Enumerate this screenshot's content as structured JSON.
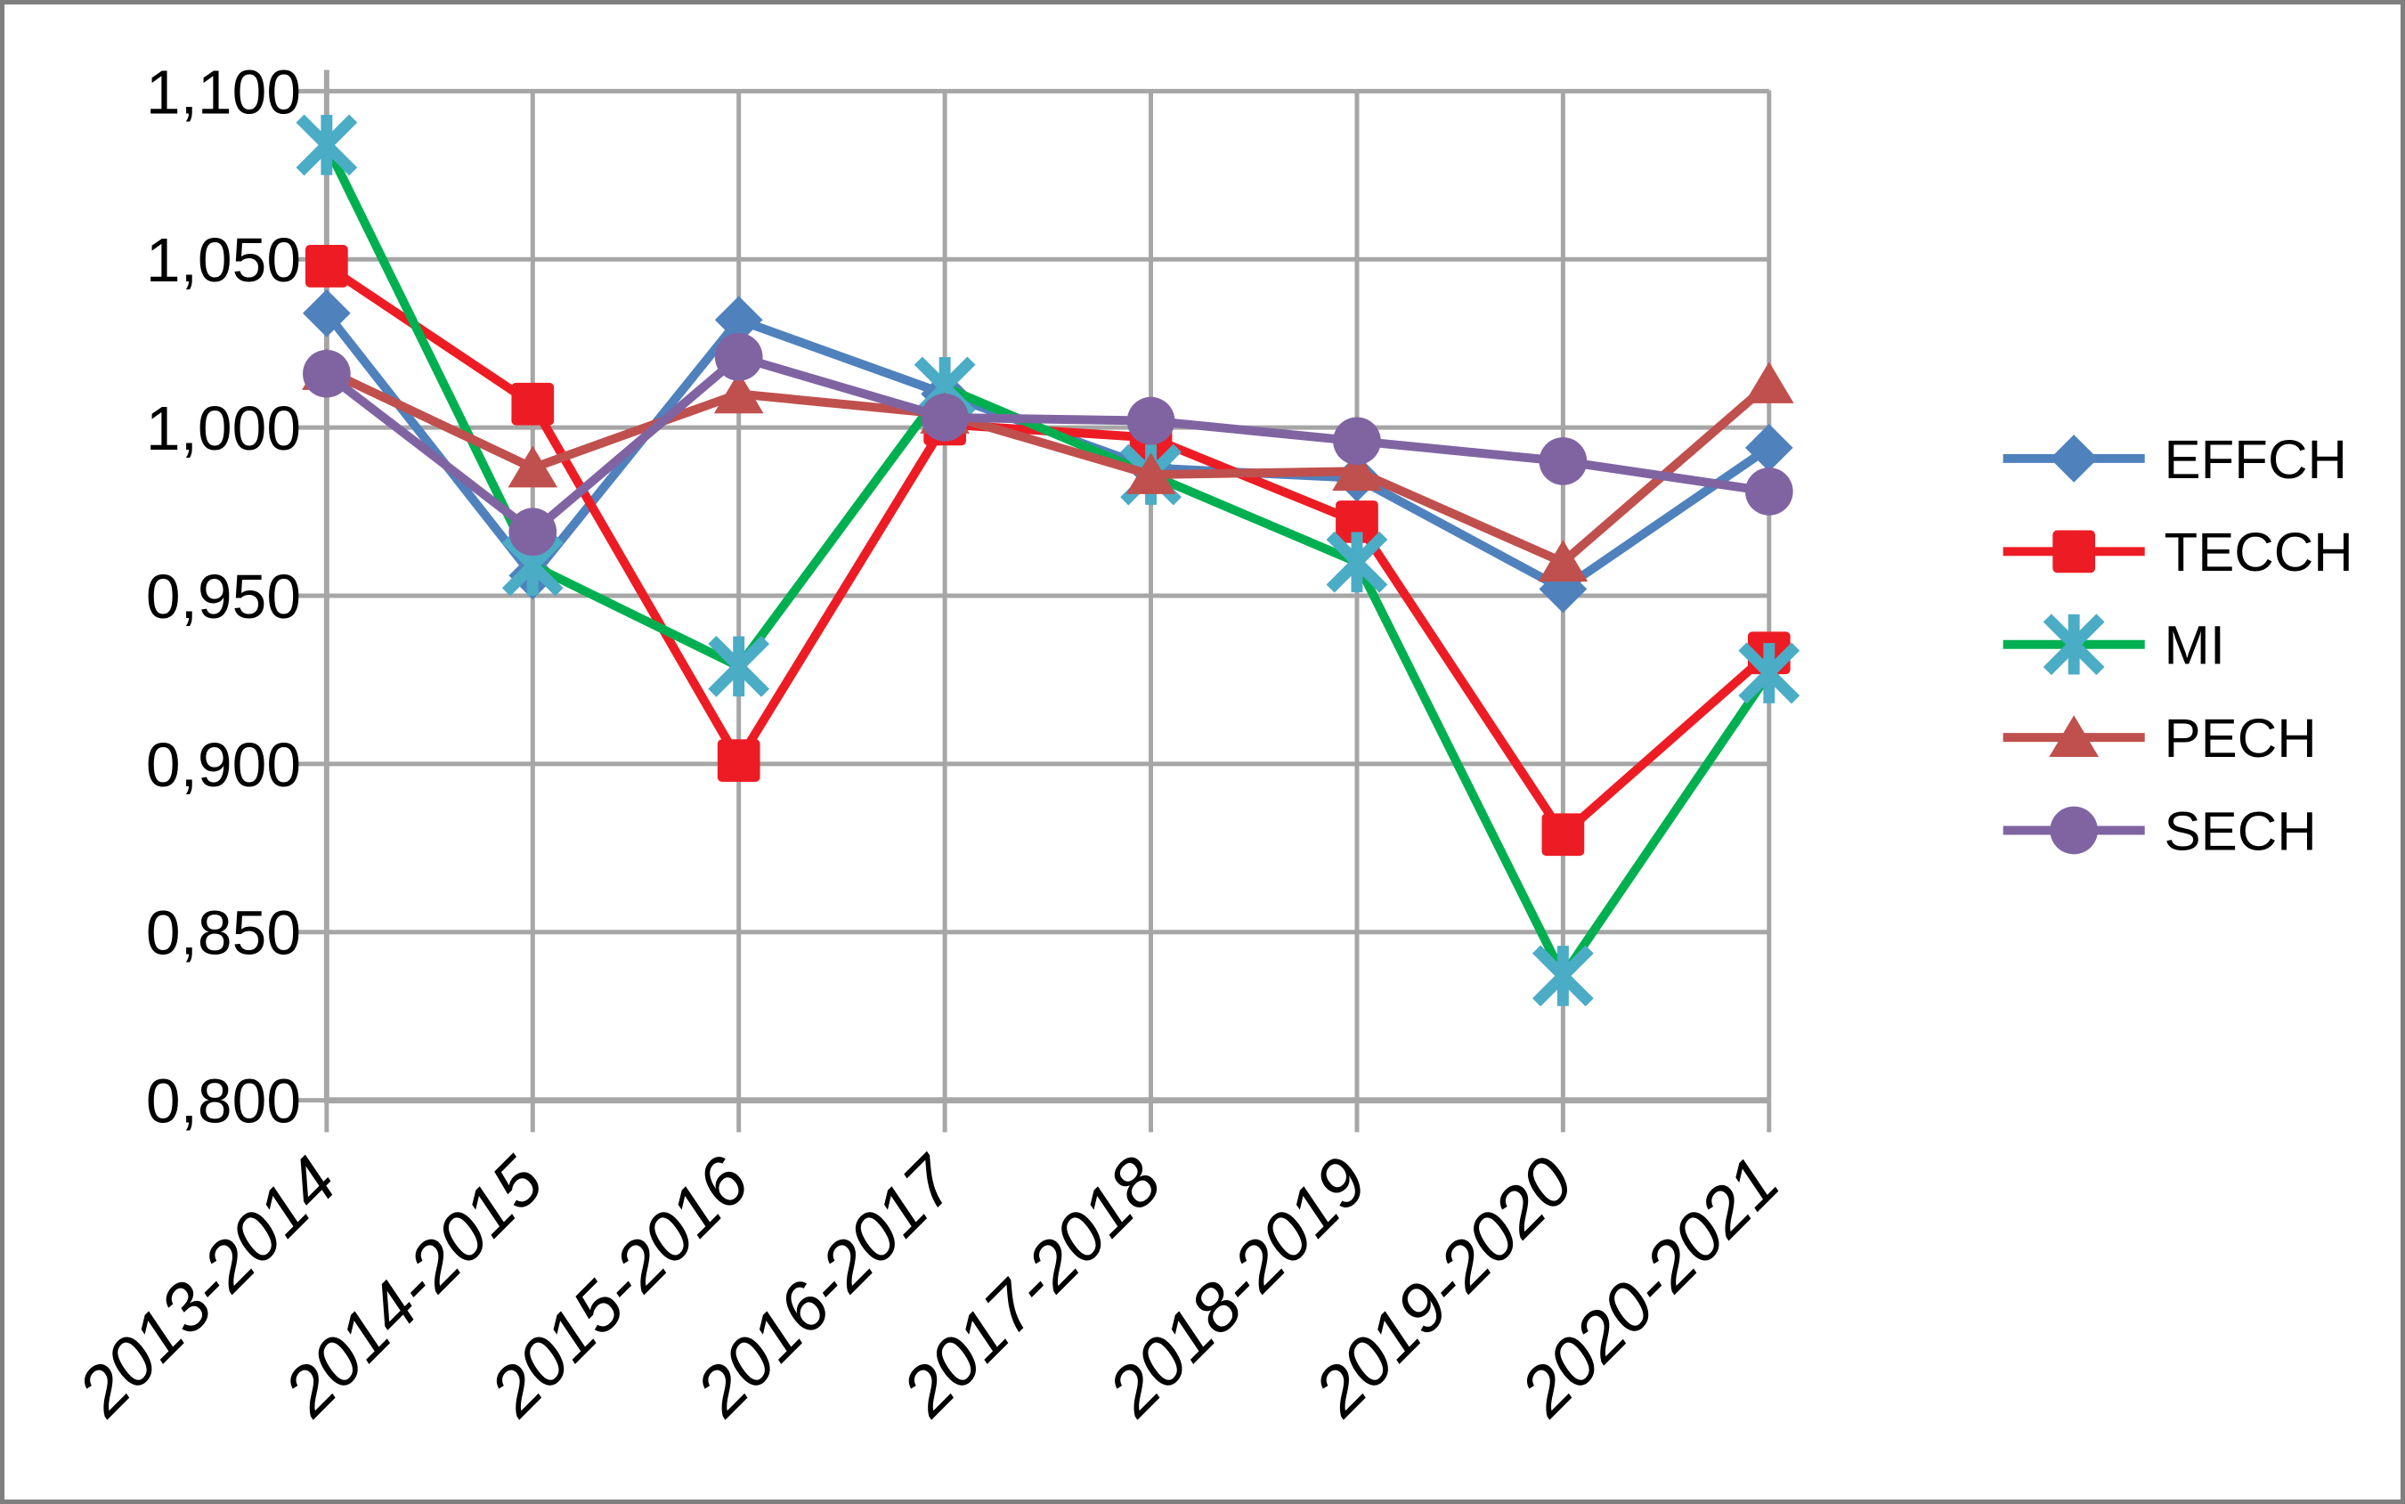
{
  "chart_data": {
    "type": "line",
    "title": "",
    "xlabel": "",
    "ylabel": "",
    "categories": [
      "2013-2014",
      "2014-2015",
      "2015-2016",
      "2016-2017",
      "2017-2018",
      "2018-2019",
      "2019-2020",
      "2020-2021"
    ],
    "series": [
      {
        "name": "EFFCH",
        "color": "#4F81BD",
        "marker": "diamond",
        "marker_color": "#4F81BD",
        "values": [
          1.034,
          0.956,
          1.032,
          1.01,
          0.988,
          0.985,
          0.952,
          0.994
        ]
      },
      {
        "name": "TECCH",
        "color": "#ED1C24",
        "marker": "square",
        "marker_color": "#ED1C24",
        "values": [
          1.048,
          1.007,
          0.901,
          1.001,
          0.997,
          0.972,
          0.879,
          0.933
        ]
      },
      {
        "name": "MI",
        "color": "#00B050",
        "marker": "star6",
        "marker_color": "#4BACC6",
        "values": [
          1.084,
          0.959,
          0.929,
          1.012,
          0.986,
          0.96,
          0.837,
          0.927
        ]
      },
      {
        "name": "PECH",
        "color": "#C0504D",
        "marker": "triangle",
        "marker_color": "#C0504D",
        "values": [
          1.017,
          0.988,
          1.01,
          1.004,
          0.986,
          0.987,
          0.96,
          1.013
        ]
      },
      {
        "name": "SECH",
        "color": "#8064A2",
        "marker": "circle",
        "marker_color": "#8064A2",
        "values": [
          1.016,
          0.969,
          1.021,
          1.003,
          1.002,
          0.996,
          0.99,
          0.981
        ]
      }
    ],
    "y_axis": {
      "min": 0.8,
      "max": 1.1,
      "step": 0.05,
      "tick_labels_top_to_bottom": [
        "1,100",
        "1,050",
        "1,000",
        "0,950",
        "0,900",
        "0,850",
        "0,800"
      ]
    },
    "x_axis": {
      "label_rotation_deg": 45,
      "label_style": "italic"
    },
    "legend": {
      "position": "right",
      "entries": [
        "EFFCH",
        "TECCH",
        "MI",
        "PECH",
        "SECH"
      ]
    },
    "grid": true,
    "gridline_color": "#A6A6A6",
    "axis_color": "#A6A6A6",
    "plot_background": "#FFFFFF",
    "border_color": "#7F7F7F"
  }
}
